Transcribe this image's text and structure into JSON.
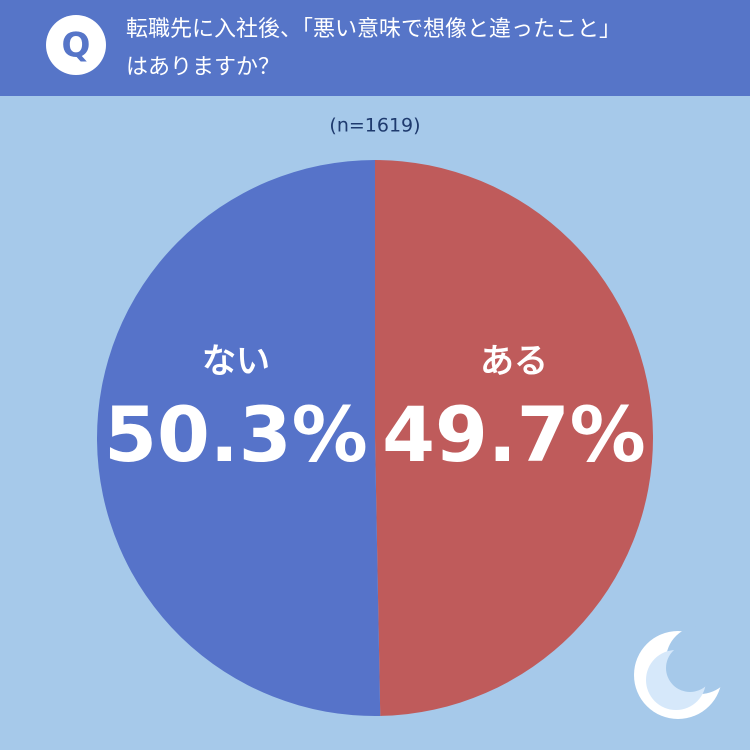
{
  "chart_data": {
    "type": "pie",
    "badge": "Q",
    "title": [
      "転職先に入社後、「悪い意味で想像と違ったこと」",
      "はありますか？"
    ],
    "subtitle": "(n=1619)",
    "categories": [
      "ある",
      "ない"
    ],
    "values": [
      49.7,
      50.3
    ],
    "value_labels": [
      "49.7%",
      "50.3%"
    ],
    "colors": [
      "#bf5b5b",
      "#5673c9"
    ]
  }
}
